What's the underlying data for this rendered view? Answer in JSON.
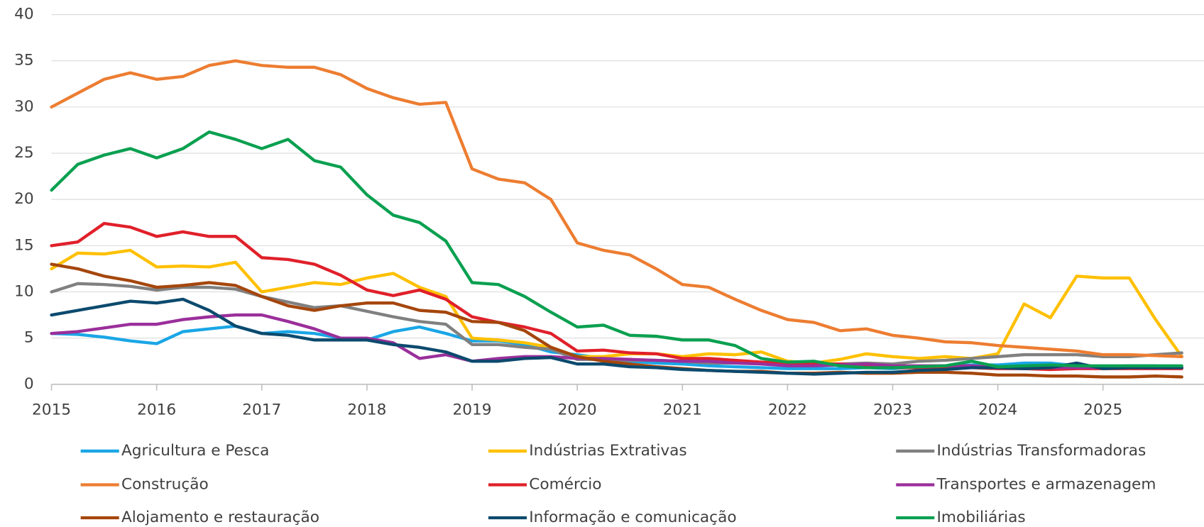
{
  "chart_data": {
    "type": "line",
    "x": [
      2015,
      2015.25,
      2015.5,
      2015.75,
      2016,
      2016.25,
      2016.5,
      2016.75,
      2017,
      2017.25,
      2017.5,
      2017.75,
      2018,
      2018.25,
      2018.5,
      2018.75,
      2019,
      2019.25,
      2019.5,
      2019.75,
      2020,
      2020.25,
      2020.5,
      2020.75,
      2021,
      2021.25,
      2021.5,
      2021.75,
      2022,
      2022.25,
      2022.5,
      2022.75,
      2023,
      2023.25,
      2023.5,
      2023.75,
      2024,
      2024.25,
      2024.5,
      2024.75,
      2025,
      2025.25,
      2025.5,
      2025.75
    ],
    "xlim": [
      2015,
      2025.96
    ],
    "xticks": [
      2015,
      2016,
      2017,
      2018,
      2019,
      2020,
      2021,
      2022,
      2023,
      2024,
      2025
    ],
    "ylim": [
      0,
      40
    ],
    "yticks": [
      0,
      5,
      10,
      15,
      20,
      25,
      30,
      35,
      40
    ],
    "grid": true,
    "legend": "bottom",
    "series": [
      {
        "name": "Agricultura e Pesca",
        "color": "#1aa6e6",
        "values": [
          5.5,
          5.4,
          5.1,
          4.7,
          4.4,
          5.7,
          6.0,
          6.3,
          5.5,
          5.7,
          5.5,
          5.0,
          4.8,
          5.7,
          6.2,
          5.5,
          4.7,
          4.7,
          4.3,
          3.5,
          3.2,
          2.8,
          2.5,
          2.3,
          2.2,
          2.0,
          1.9,
          1.8,
          1.7,
          1.7,
          1.7,
          1.8,
          1.7,
          1.9,
          2.0,
          2.1,
          2.1,
          2.3,
          2.3,
          2.0,
          1.9,
          2.0,
          2.0,
          1.8
        ]
      },
      {
        "name": "Indústrias Extrativas",
        "color": "#ffc000",
        "values": [
          12.5,
          14.2,
          14.1,
          14.5,
          12.7,
          12.8,
          12.7,
          13.2,
          10.0,
          10.5,
          11.0,
          10.8,
          11.5,
          12.0,
          10.5,
          9.5,
          5.0,
          4.8,
          4.5,
          4.0,
          3.0,
          3.0,
          3.3,
          3.3,
          3.0,
          3.3,
          3.2,
          3.5,
          2.5,
          2.3,
          2.7,
          3.3,
          3.0,
          2.8,
          3.0,
          2.8,
          3.3,
          8.7,
          7.2,
          11.7,
          11.5,
          11.5,
          7.0,
          3.0
        ]
      },
      {
        "name": "Indústrias Transformadoras",
        "color": "#808080",
        "values": [
          10.0,
          10.9,
          10.8,
          10.6,
          10.2,
          10.5,
          10.5,
          10.3,
          9.5,
          8.9,
          8.3,
          8.5,
          7.9,
          7.3,
          6.8,
          6.5,
          4.3,
          4.3,
          4.0,
          3.8,
          2.7,
          2.7,
          2.6,
          2.6,
          2.5,
          2.3,
          2.3,
          2.3,
          2.2,
          2.2,
          2.2,
          2.3,
          2.2,
          2.5,
          2.6,
          2.8,
          3.0,
          3.2,
          3.2,
          3.2,
          3.0,
          3.0,
          3.2,
          3.4
        ]
      },
      {
        "name": "Construção",
        "color": "#ed7d31",
        "values": [
          30.0,
          31.5,
          33.0,
          33.7,
          33.0,
          33.3,
          34.5,
          35.0,
          34.5,
          34.3,
          34.3,
          33.5,
          32.0,
          31.0,
          30.3,
          30.5,
          23.3,
          22.2,
          21.8,
          20.0,
          15.3,
          14.5,
          14.0,
          12.5,
          10.8,
          10.5,
          9.2,
          8.0,
          7.0,
          6.7,
          5.8,
          6.0,
          5.3,
          5.0,
          4.6,
          4.5,
          4.2,
          4.0,
          3.8,
          3.6,
          3.2,
          3.2,
          3.1,
          3.0
        ]
      },
      {
        "name": "Comércio",
        "color": "#e0202a",
        "values": [
          15.0,
          15.4,
          17.4,
          17.0,
          16.0,
          16.5,
          16.0,
          16.0,
          13.7,
          13.5,
          13.0,
          11.8,
          10.2,
          9.6,
          10.2,
          9.2,
          7.3,
          6.7,
          6.2,
          5.5,
          3.6,
          3.7,
          3.4,
          3.3,
          2.8,
          2.8,
          2.6,
          2.4,
          2.3,
          2.2,
          2.2,
          2.0,
          1.8,
          1.8,
          1.8,
          1.8,
          1.7,
          1.7,
          1.6,
          1.7,
          1.7,
          1.7,
          1.7,
          1.7
        ]
      },
      {
        "name": "Transportes e armazenagem",
        "color": "#9b2f9b",
        "values": [
          5.5,
          5.7,
          6.1,
          6.5,
          6.5,
          7.0,
          7.3,
          7.5,
          7.5,
          6.8,
          6.0,
          5.0,
          5.0,
          4.5,
          2.8,
          3.2,
          2.5,
          2.8,
          3.0,
          3.0,
          2.8,
          2.8,
          2.7,
          2.6,
          2.5,
          2.5,
          2.3,
          2.2,
          2.0,
          2.0,
          2.1,
          2.2,
          2.0,
          2.0,
          2.0,
          2.0,
          1.8,
          1.9,
          1.8,
          1.8,
          1.8,
          1.8,
          1.8,
          1.8
        ]
      },
      {
        "name": "Alojamento e restauração",
        "color": "#a5460c",
        "values": [
          13.0,
          12.5,
          11.7,
          11.2,
          10.5,
          10.7,
          11.0,
          10.7,
          9.5,
          8.5,
          8.0,
          8.5,
          8.8,
          8.8,
          8.0,
          7.8,
          6.8,
          6.7,
          5.8,
          4.0,
          3.0,
          2.5,
          2.2,
          1.9,
          1.7,
          1.5,
          1.4,
          1.4,
          1.2,
          1.2,
          1.3,
          1.2,
          1.2,
          1.3,
          1.3,
          1.2,
          1.0,
          1.0,
          0.9,
          0.9,
          0.8,
          0.8,
          0.9,
          0.8
        ]
      },
      {
        "name": "Informação e comunicação",
        "color": "#0c4a6e",
        "values": [
          7.5,
          8.0,
          8.5,
          9.0,
          8.8,
          9.2,
          8.0,
          6.3,
          5.5,
          5.3,
          4.8,
          4.8,
          4.8,
          4.3,
          4.0,
          3.5,
          2.5,
          2.5,
          2.8,
          2.9,
          2.2,
          2.2,
          1.9,
          1.8,
          1.6,
          1.5,
          1.4,
          1.3,
          1.2,
          1.1,
          1.2,
          1.3,
          1.3,
          1.5,
          1.6,
          1.8,
          1.8,
          1.7,
          1.8,
          2.3,
          1.7,
          1.8,
          1.8,
          1.8
        ]
      },
      {
        "name": "Imobiliárias",
        "color": "#0aa050",
        "values": [
          21.0,
          23.8,
          24.8,
          25.5,
          24.5,
          25.5,
          27.3,
          26.5,
          25.5,
          26.5,
          24.2,
          23.5,
          20.5,
          18.3,
          17.5,
          15.5,
          11.0,
          10.8,
          9.5,
          7.8,
          6.2,
          6.4,
          5.3,
          5.2,
          4.8,
          4.8,
          4.2,
          2.8,
          2.4,
          2.5,
          2.0,
          1.8,
          1.8,
          1.9,
          2.0,
          2.5,
          1.9,
          2.0,
          2.1,
          2.0,
          2.0,
          2.0,
          2.0,
          2.0
        ]
      }
    ]
  }
}
